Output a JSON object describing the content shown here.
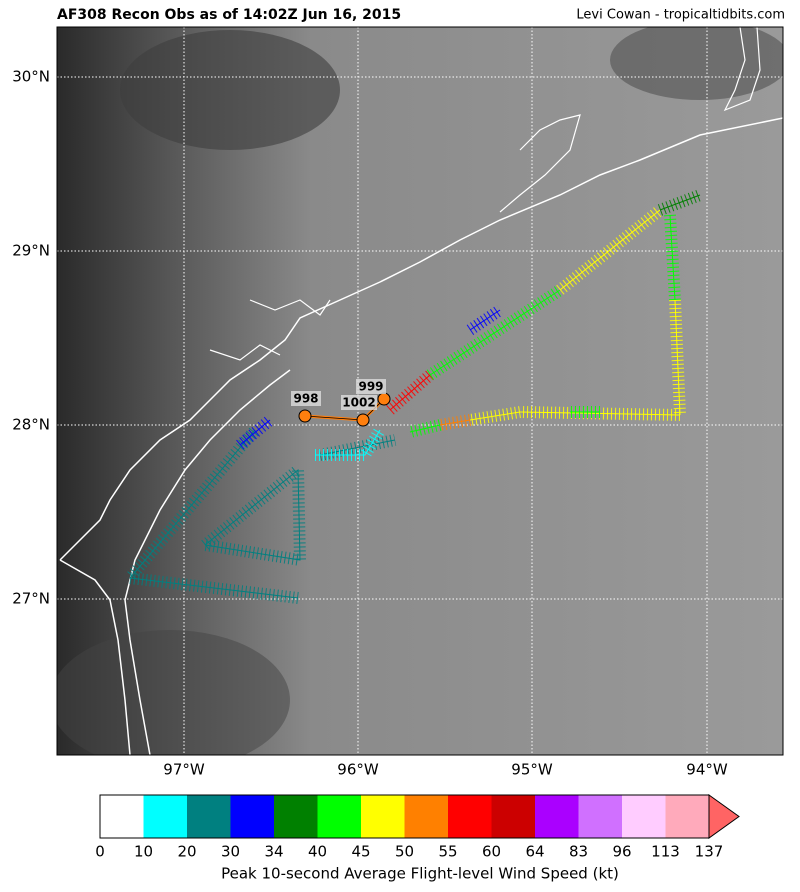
{
  "header": {
    "title": "AF308 Recon Obs as of 14:02Z Jun 16, 2015",
    "credit": "Levi Cowan - tropicaltidbits.com"
  },
  "map": {
    "lat_labels": [
      "30°N",
      "29°N",
      "28°N",
      "27°N"
    ],
    "lon_labels": [
      "97°W",
      "96°W",
      "95°W",
      "94°W"
    ],
    "pressure_labels": [
      998,
      1002,
      999
    ]
  },
  "colorbar": {
    "ticks": [
      0,
      10,
      20,
      30,
      34,
      40,
      45,
      50,
      55,
      60,
      64,
      83,
      96,
      113,
      137
    ],
    "colors": [
      "#ffffff",
      "#00ffff",
      "#008080",
      "#0000ff",
      "#008000",
      "#00ff00",
      "#ffff00",
      "#ff8000",
      "#ff0000",
      "#cc0000",
      "#aa00ff",
      "#d070ff",
      "#ffccff",
      "#ffaabb"
    ],
    "over_color": "#ff6464",
    "label": "Peak 10-second Average Flight-level Wind Speed (kt)"
  }
}
